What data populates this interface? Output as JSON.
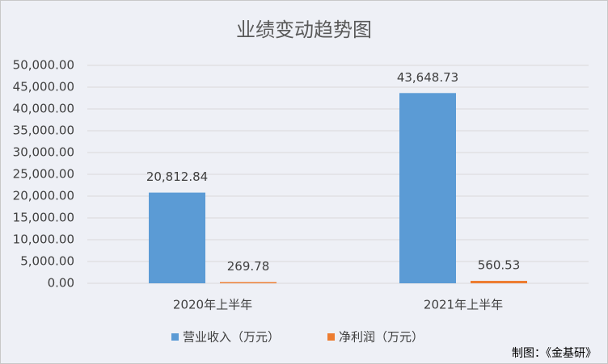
{
  "chart_data": {
    "type": "bar",
    "title": "业绩变动趋势图",
    "categories": [
      "2020年上半年",
      "2021年上半年"
    ],
    "series": [
      {
        "name": "营业收入（万元）",
        "color": "#5b9bd5",
        "values": [
          20812.84,
          43648.73
        ],
        "value_labels": [
          "20,812.84",
          "43,648.73"
        ]
      },
      {
        "name": "净利润（万元）",
        "color": "#ed7d31",
        "values": [
          269.78,
          560.53
        ],
        "value_labels": [
          "269.78",
          "560.53"
        ]
      }
    ],
    "ylim": [
      0,
      50000
    ],
    "yticks": [
      {
        "value": 0,
        "label": "0.00"
      },
      {
        "value": 5000,
        "label": "5,000.00"
      },
      {
        "value": 10000,
        "label": "10,000.00"
      },
      {
        "value": 15000,
        "label": "15,000.00"
      },
      {
        "value": 20000,
        "label": "20,000.00"
      },
      {
        "value": 25000,
        "label": "25,000.00"
      },
      {
        "value": 30000,
        "label": "30,000.00"
      },
      {
        "value": 35000,
        "label": "35,000.00"
      },
      {
        "value": 40000,
        "label": "40,000.00"
      },
      {
        "value": 45000,
        "label": "45,000.00"
      },
      {
        "value": 50000,
        "label": "50,000.00"
      }
    ],
    "grid": true,
    "legend": "bottom",
    "note": "制图：《金基研》"
  }
}
